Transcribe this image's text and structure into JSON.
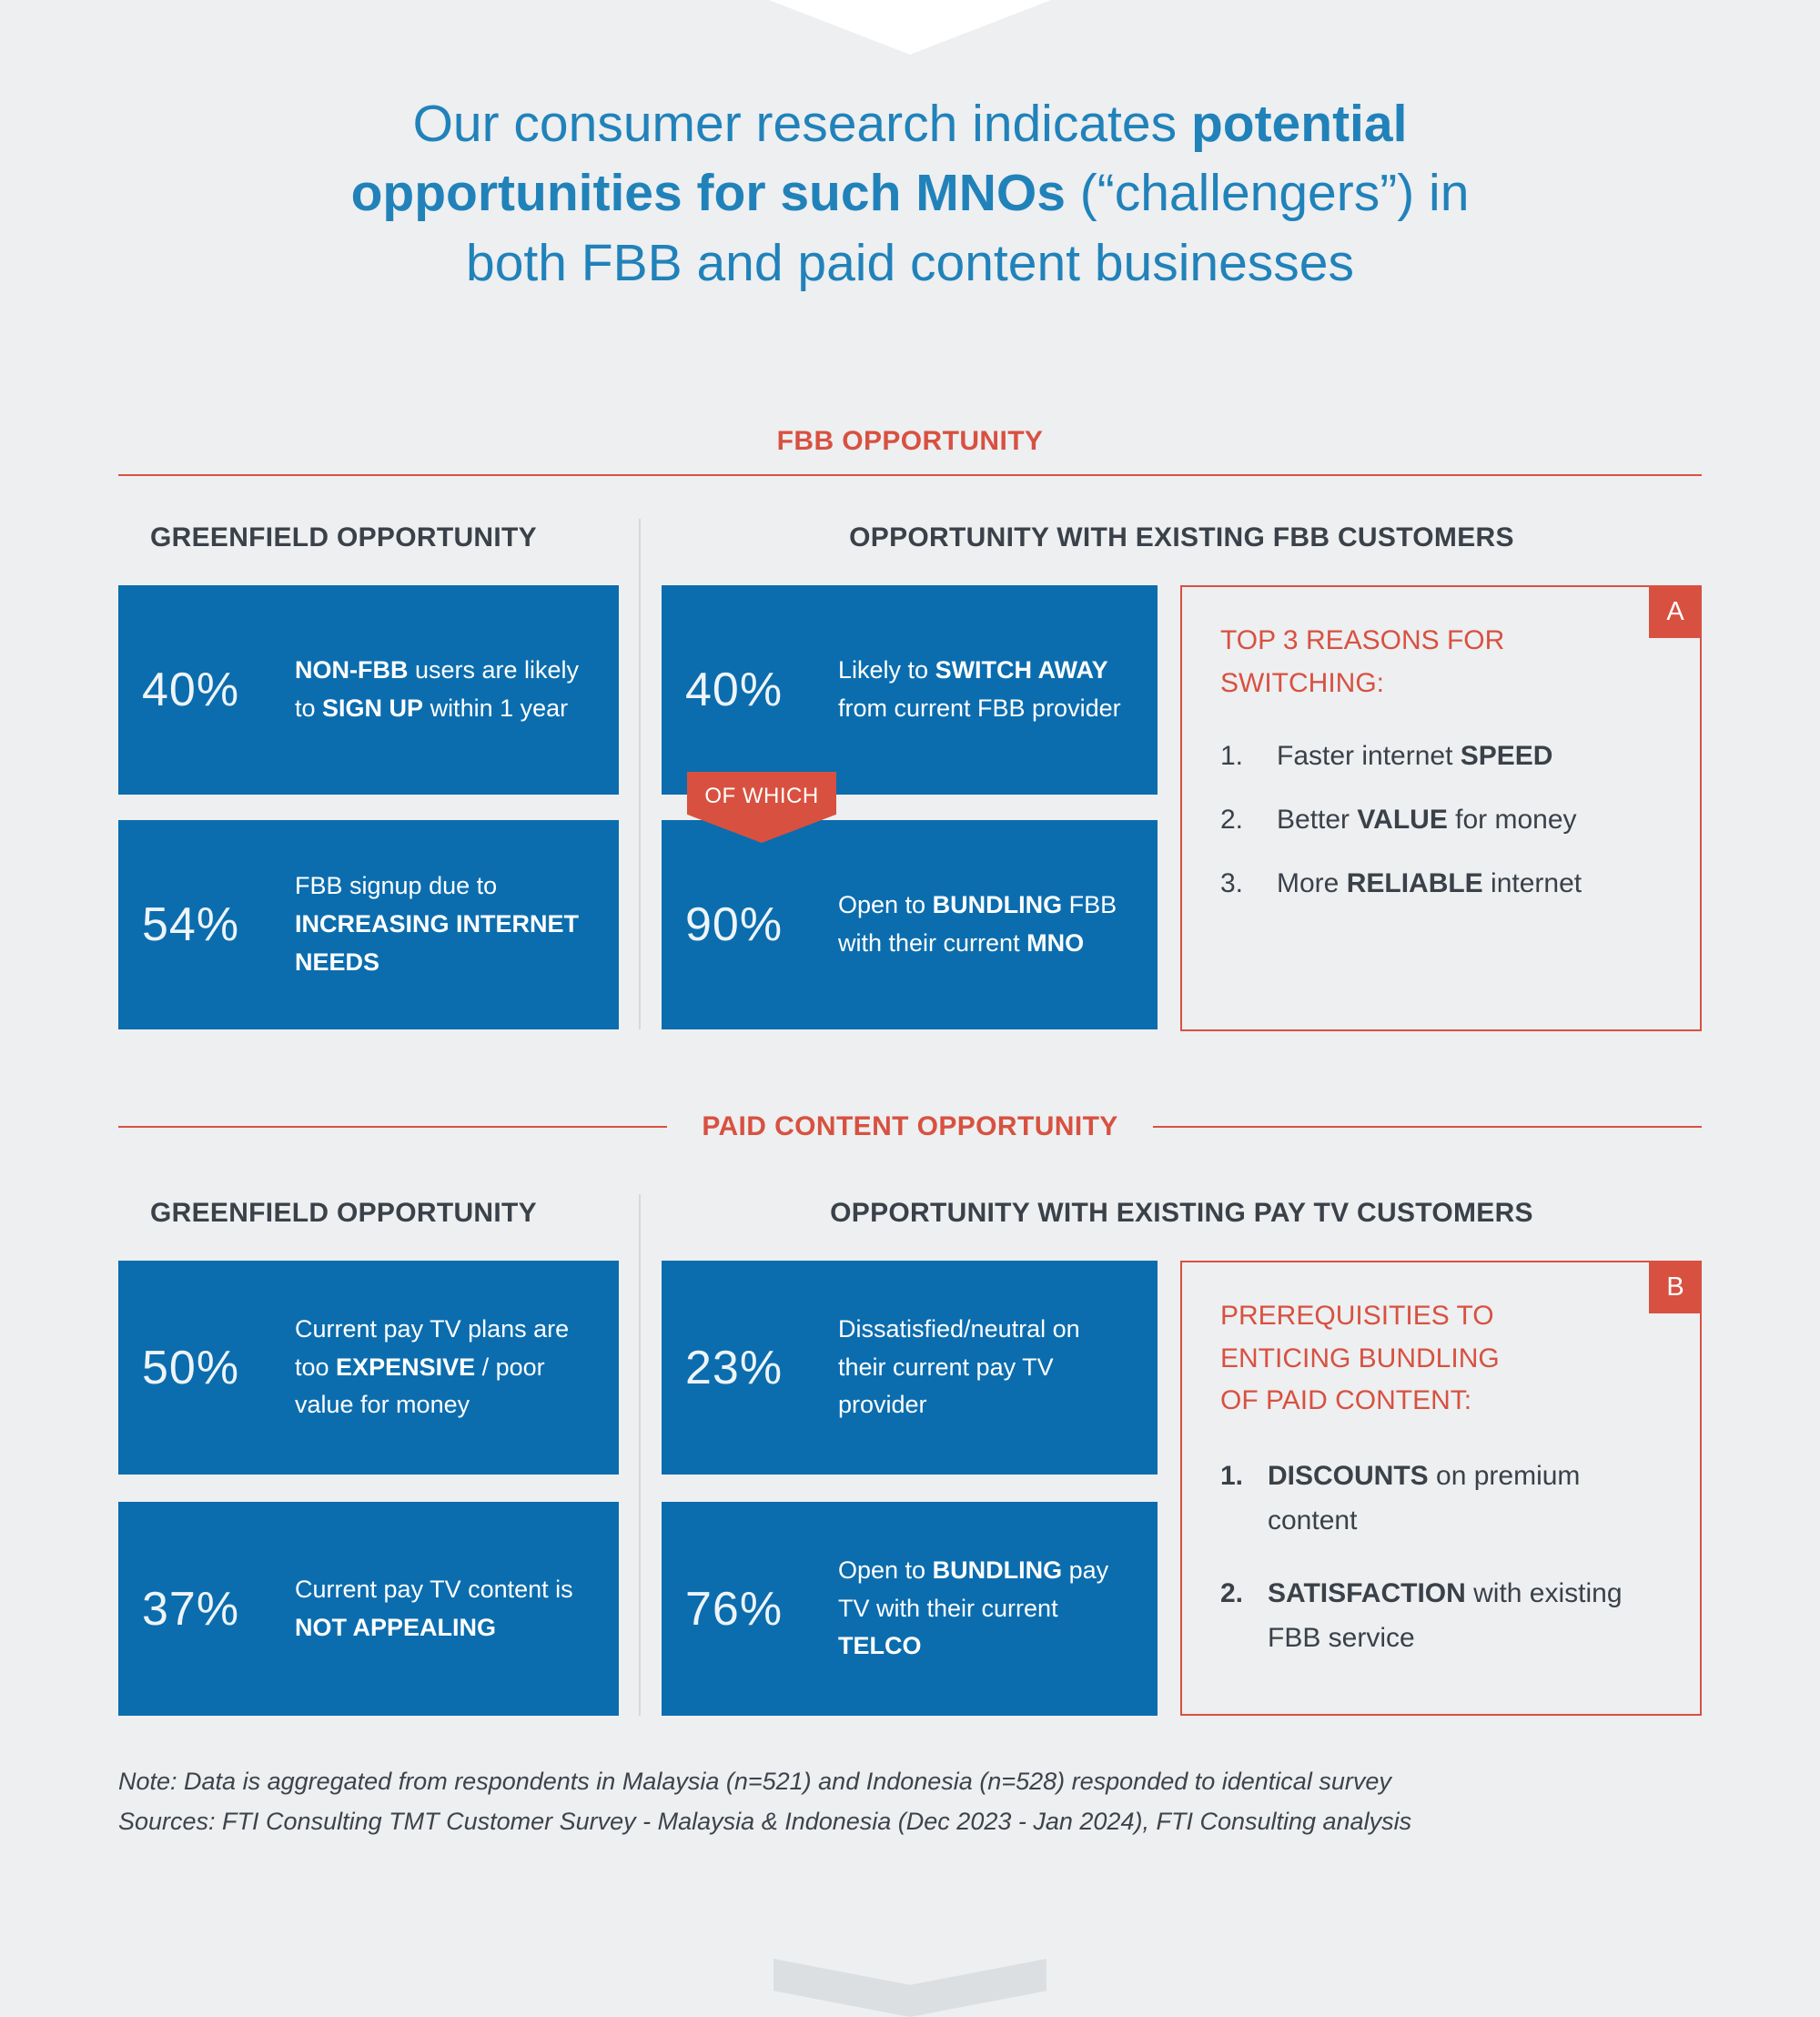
{
  "colors": {
    "background": "#edeff1",
    "stat_box_blue": "#0b6dae",
    "accent_red": "#d85140",
    "title_blue": "#2182ba",
    "heading_dark": "#3a4149"
  },
  "title": {
    "parts": [
      {
        "t": "Our consumer research indicates ",
        "b": false
      },
      {
        "t": "potential opportunities for such MNOs",
        "b": true
      },
      {
        "t": " (“challengers”) in both FBB and paid content businesses",
        "b": false
      }
    ]
  },
  "fbb": {
    "section_header": "FBB OPPORTUNITY",
    "greenfield_header": "GREENFIELD OPPORTUNITY",
    "existing_header": "OPPORTUNITY WITH EXISTING FBB CUSTOMERS",
    "greenfield_stats": [
      {
        "value": "40%",
        "parts": [
          {
            "t": "NON-FBB",
            "b": true
          },
          {
            "t": " users are likely to ",
            "b": false
          },
          {
            "t": "SIGN UP",
            "b": true
          },
          {
            "t": " within 1 year",
            "b": false
          }
        ]
      },
      {
        "value": "54%",
        "parts": [
          {
            "t": "FBB signup due to ",
            "b": false
          },
          {
            "t": "INCREASING INTERNET NEEDS",
            "b": true
          }
        ]
      }
    ],
    "of_which_label": "OF WHICH",
    "existing_stats": [
      {
        "value": "40%",
        "parts": [
          {
            "t": "Likely to ",
            "b": false
          },
          {
            "t": "SWITCH AWAY",
            "b": true
          },
          {
            "t": " from current FBB provider",
            "b": false
          }
        ]
      },
      {
        "value": "90%",
        "parts": [
          {
            "t": "Open to ",
            "b": false
          },
          {
            "t": "BUNDLING",
            "b": true
          },
          {
            "t": " FBB with their current ",
            "b": false
          },
          {
            "t": "MNO",
            "b": true
          }
        ]
      }
    ],
    "callout": {
      "tag": "A",
      "title": "TOP 3 REASONS FOR SWITCHING:",
      "items": [
        {
          "num": "1.",
          "parts": [
            {
              "t": "Faster internet ",
              "b": false
            },
            {
              "t": "SPEED",
              "b": true
            }
          ]
        },
        {
          "num": "2.",
          "parts": [
            {
              "t": "Better ",
              "b": false
            },
            {
              "t": "VALUE",
              "b": true
            },
            {
              "t": " for money",
              "b": false
            }
          ]
        },
        {
          "num": "3.",
          "parts": [
            {
              "t": "More ",
              "b": false
            },
            {
              "t": "RELIABLE",
              "b": true
            },
            {
              "t": " internet",
              "b": false
            }
          ]
        }
      ]
    }
  },
  "paid": {
    "section_header": "PAID CONTENT OPPORTUNITY",
    "greenfield_header": "GREENFIELD OPPORTUNITY",
    "existing_header": "OPPORTUNITY WITH EXISTING PAY TV CUSTOMERS",
    "greenfield_stats": [
      {
        "value": "50%",
        "parts": [
          {
            "t": "Current pay TV plans are too ",
            "b": false
          },
          {
            "t": "EXPENSIVE",
            "b": true
          },
          {
            "t": " / poor value for money",
            "b": false
          }
        ]
      },
      {
        "value": "37%",
        "parts": [
          {
            "t": "Current pay TV content is ",
            "b": false
          },
          {
            "t": "NOT APPEALING",
            "b": true
          }
        ]
      }
    ],
    "existing_stats": [
      {
        "value": "23%",
        "parts": [
          {
            "t": "Dissatisfied/neutral on their current pay TV provider",
            "b": false
          }
        ]
      },
      {
        "value": "76%",
        "parts": [
          {
            "t": "Open to ",
            "b": false
          },
          {
            "t": "BUNDLING",
            "b": true
          },
          {
            "t": " pay TV with their current ",
            "b": false
          },
          {
            "t": "TELCO",
            "b": true
          }
        ]
      }
    ],
    "callout": {
      "tag": "B",
      "title": "PREREQUISITIES TO ENTICING BUNDLING OF PAID CONTENT:",
      "items": [
        {
          "num": "1.",
          "parts": [
            {
              "t": "DISCOUNTS",
              "b": true
            },
            {
              "t": " on premium content",
              "b": false
            }
          ]
        },
        {
          "num": "2.",
          "parts": [
            {
              "t": "SATISFACTION",
              "b": true
            },
            {
              "t": " with existing FBB service",
              "b": false
            }
          ]
        }
      ]
    }
  },
  "footer": {
    "note": "Note: Data is aggregated from respondents in Malaysia (n=521) and Indonesia (n=528) responded to identical survey",
    "sources": "Sources: FTI Consulting TMT Customer Survey - Malaysia & Indonesia (Dec 2023 - Jan 2024), FTI Consulting analysis"
  }
}
